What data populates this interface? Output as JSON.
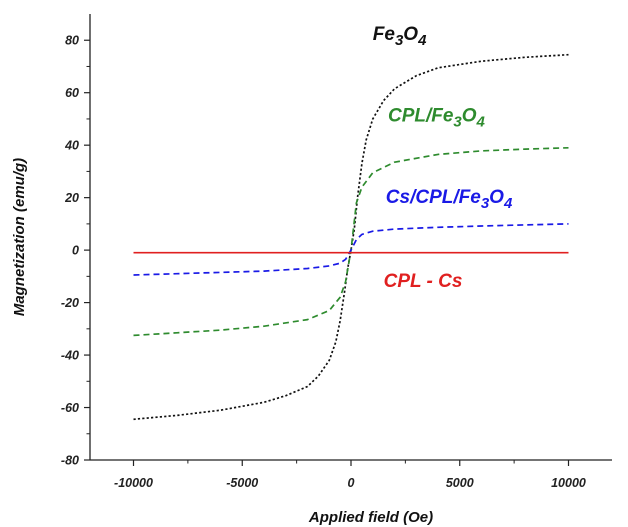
{
  "chart_data": {
    "type": "line",
    "title": "",
    "xlabel": "Applied field (Oe)",
    "ylabel": "Magnetization (emu/g)",
    "xlim": [
      -12000,
      12000
    ],
    "ylim": [
      -80,
      90
    ],
    "xticks": [
      -10000,
      -5000,
      0,
      5000,
      10000
    ],
    "xtick_labels": [
      "-10000",
      "-5000",
      "0",
      "5000",
      "10000"
    ],
    "yticks": [
      -80,
      -60,
      -40,
      -20,
      0,
      20,
      40,
      60,
      80
    ],
    "ytick_labels": [
      "-80",
      "-60",
      "-40",
      "-20",
      "0",
      "20",
      "40",
      "60",
      "80"
    ],
    "grid": false,
    "legend": "inline labels",
    "series": [
      {
        "name": "Fe3O4",
        "label_parts": [
          {
            "t": "Fe",
            "sub": false
          },
          {
            "t": "3",
            "sub": true
          },
          {
            "t": "O",
            "sub": false
          },
          {
            "t": "4",
            "sub": true
          }
        ],
        "color": "#111111",
        "dash": "dotted",
        "label_at": [
          1000,
          80
        ],
        "x": [
          -10000,
          -8000,
          -6000,
          -4000,
          -3000,
          -2000,
          -1500,
          -1000,
          -700,
          -500,
          -300,
          -150,
          0,
          150,
          300,
          500,
          700,
          1000,
          1500,
          2000,
          3000,
          4000,
          6000,
          8000,
          10000
        ],
        "y": [
          -64.5,
          -63,
          -61,
          -58,
          -55.5,
          -52,
          -48,
          -42,
          -35,
          -27,
          -16,
          -7,
          0,
          8,
          20,
          33,
          42,
          50,
          57,
          61.5,
          66.5,
          69.5,
          72,
          73.5,
          74.5
        ]
      },
      {
        "name": "CPL/Fe3O4",
        "label_parts": [
          {
            "t": "CPL/Fe",
            "sub": false
          },
          {
            "t": "3",
            "sub": true
          },
          {
            "t": "O",
            "sub": false
          },
          {
            "t": "4",
            "sub": true
          }
        ],
        "color": "#2e8b2e",
        "dash": "dashed",
        "label_at": [
          1700,
          49
        ],
        "x": [
          -10000,
          -8000,
          -6000,
          -4000,
          -2000,
          -1000,
          -500,
          -250,
          0,
          250,
          500,
          1000,
          2000,
          4000,
          6000,
          8000,
          10000
        ],
        "y": [
          -32.5,
          -31.5,
          -30.5,
          -29,
          -26.5,
          -23,
          -18,
          -12,
          0,
          18,
          24,
          29.5,
          33.5,
          36.5,
          37.8,
          38.5,
          39
        ]
      },
      {
        "name": "Cs/CPL/Fe3O4",
        "label_parts": [
          {
            "t": "Cs/CPL/Fe",
            "sub": false
          },
          {
            "t": "3",
            "sub": true
          },
          {
            "t": "O",
            "sub": false
          },
          {
            "t": "4",
            "sub": true
          }
        ],
        "color": "#1a1ae6",
        "dash": "dashed",
        "label_at": [
          1600,
          18
        ],
        "x": [
          -10000,
          -8000,
          -6000,
          -4000,
          -2000,
          -1000,
          -500,
          -250,
          0,
          250,
          500,
          1000,
          2000,
          4000,
          6000,
          8000,
          10000
        ],
        "y": [
          -9.5,
          -9,
          -8.5,
          -8,
          -7,
          -6,
          -5,
          -3.5,
          0,
          4,
          6,
          7.2,
          8,
          8.7,
          9.2,
          9.6,
          10
        ]
      },
      {
        "name": "CPL - Cs",
        "label_parts": [
          {
            "t": "CPL - Cs",
            "sub": false
          }
        ],
        "color": "#e02020",
        "dash": "solid",
        "label_at": [
          1500,
          -14
        ],
        "x": [
          -10000,
          10000
        ],
        "y": [
          -1,
          -1
        ]
      }
    ]
  }
}
